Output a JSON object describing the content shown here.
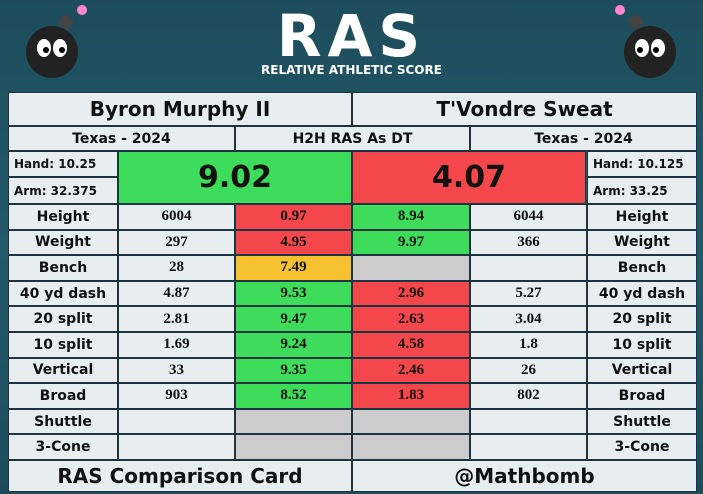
{
  "header": {
    "logo": "RAS",
    "subtitle": "RELATIVE ATHLETIC SCORE"
  },
  "players": [
    {
      "name": "Byron Murphy II",
      "school": "Texas - 2024",
      "hand": "Hand: 10.25",
      "arm": "Arm: 32.375",
      "ras": 9.02,
      "ras_color": "#3ddc5b"
    },
    {
      "name": "T'Vondre Sweat",
      "school": "Texas - 2024",
      "hand": "Hand: 10.125",
      "arm": "Arm: 33.25",
      "ras": 4.07,
      "ras_color": "#f4474b"
    }
  ],
  "comparison_label": "H2H RAS As DT",
  "metrics": [
    {
      "label": "Height",
      "values": [
        6004,
        6044
      ],
      "scores": [
        0.97,
        8.94
      ],
      "score_colors": [
        "#f4474b",
        "#3ddc5b"
      ]
    },
    {
      "label": "Weight",
      "values": [
        297,
        366
      ],
      "scores": [
        4.95,
        9.97
      ],
      "score_colors": [
        "#f4474b",
        "#3ddc5b"
      ]
    },
    {
      "label": "Bench",
      "values": [
        28,
        null
      ],
      "scores": [
        7.49,
        null
      ],
      "score_colors": [
        "#f6c232",
        "#cccccc"
      ]
    },
    {
      "label": "40 yd dash",
      "values": [
        4.87,
        5.27
      ],
      "scores": [
        9.53,
        2.96
      ],
      "score_colors": [
        "#3ddc5b",
        "#f4474b"
      ]
    },
    {
      "label": "20 split",
      "values": [
        2.81,
        3.04
      ],
      "scores": [
        9.47,
        2.63
      ],
      "score_colors": [
        "#3ddc5b",
        "#f4474b"
      ]
    },
    {
      "label": "10 split",
      "values": [
        1.69,
        1.8
      ],
      "scores": [
        9.24,
        4.58
      ],
      "score_colors": [
        "#3ddc5b",
        "#f4474b"
      ]
    },
    {
      "label": "Vertical",
      "values": [
        33,
        26
      ],
      "scores": [
        9.35,
        2.46
      ],
      "score_colors": [
        "#3ddc5b",
        "#f4474b"
      ]
    },
    {
      "label": "Broad",
      "values": [
        903,
        802
      ],
      "scores": [
        8.52,
        1.83
      ],
      "score_colors": [
        "#3ddc5b",
        "#f4474b"
      ]
    },
    {
      "label": "Shuttle",
      "values": [
        null,
        null
      ],
      "scores": [
        null,
        null
      ],
      "score_colors": [
        "#cccccc",
        "#cccccc"
      ]
    },
    {
      "label": "3-Cone",
      "values": [
        null,
        null
      ],
      "scores": [
        null,
        null
      ],
      "score_colors": [
        "#cccccc",
        "#cccccc"
      ]
    }
  ],
  "footer": {
    "left": "RAS Comparison Card",
    "right": "@Mathbomb"
  }
}
